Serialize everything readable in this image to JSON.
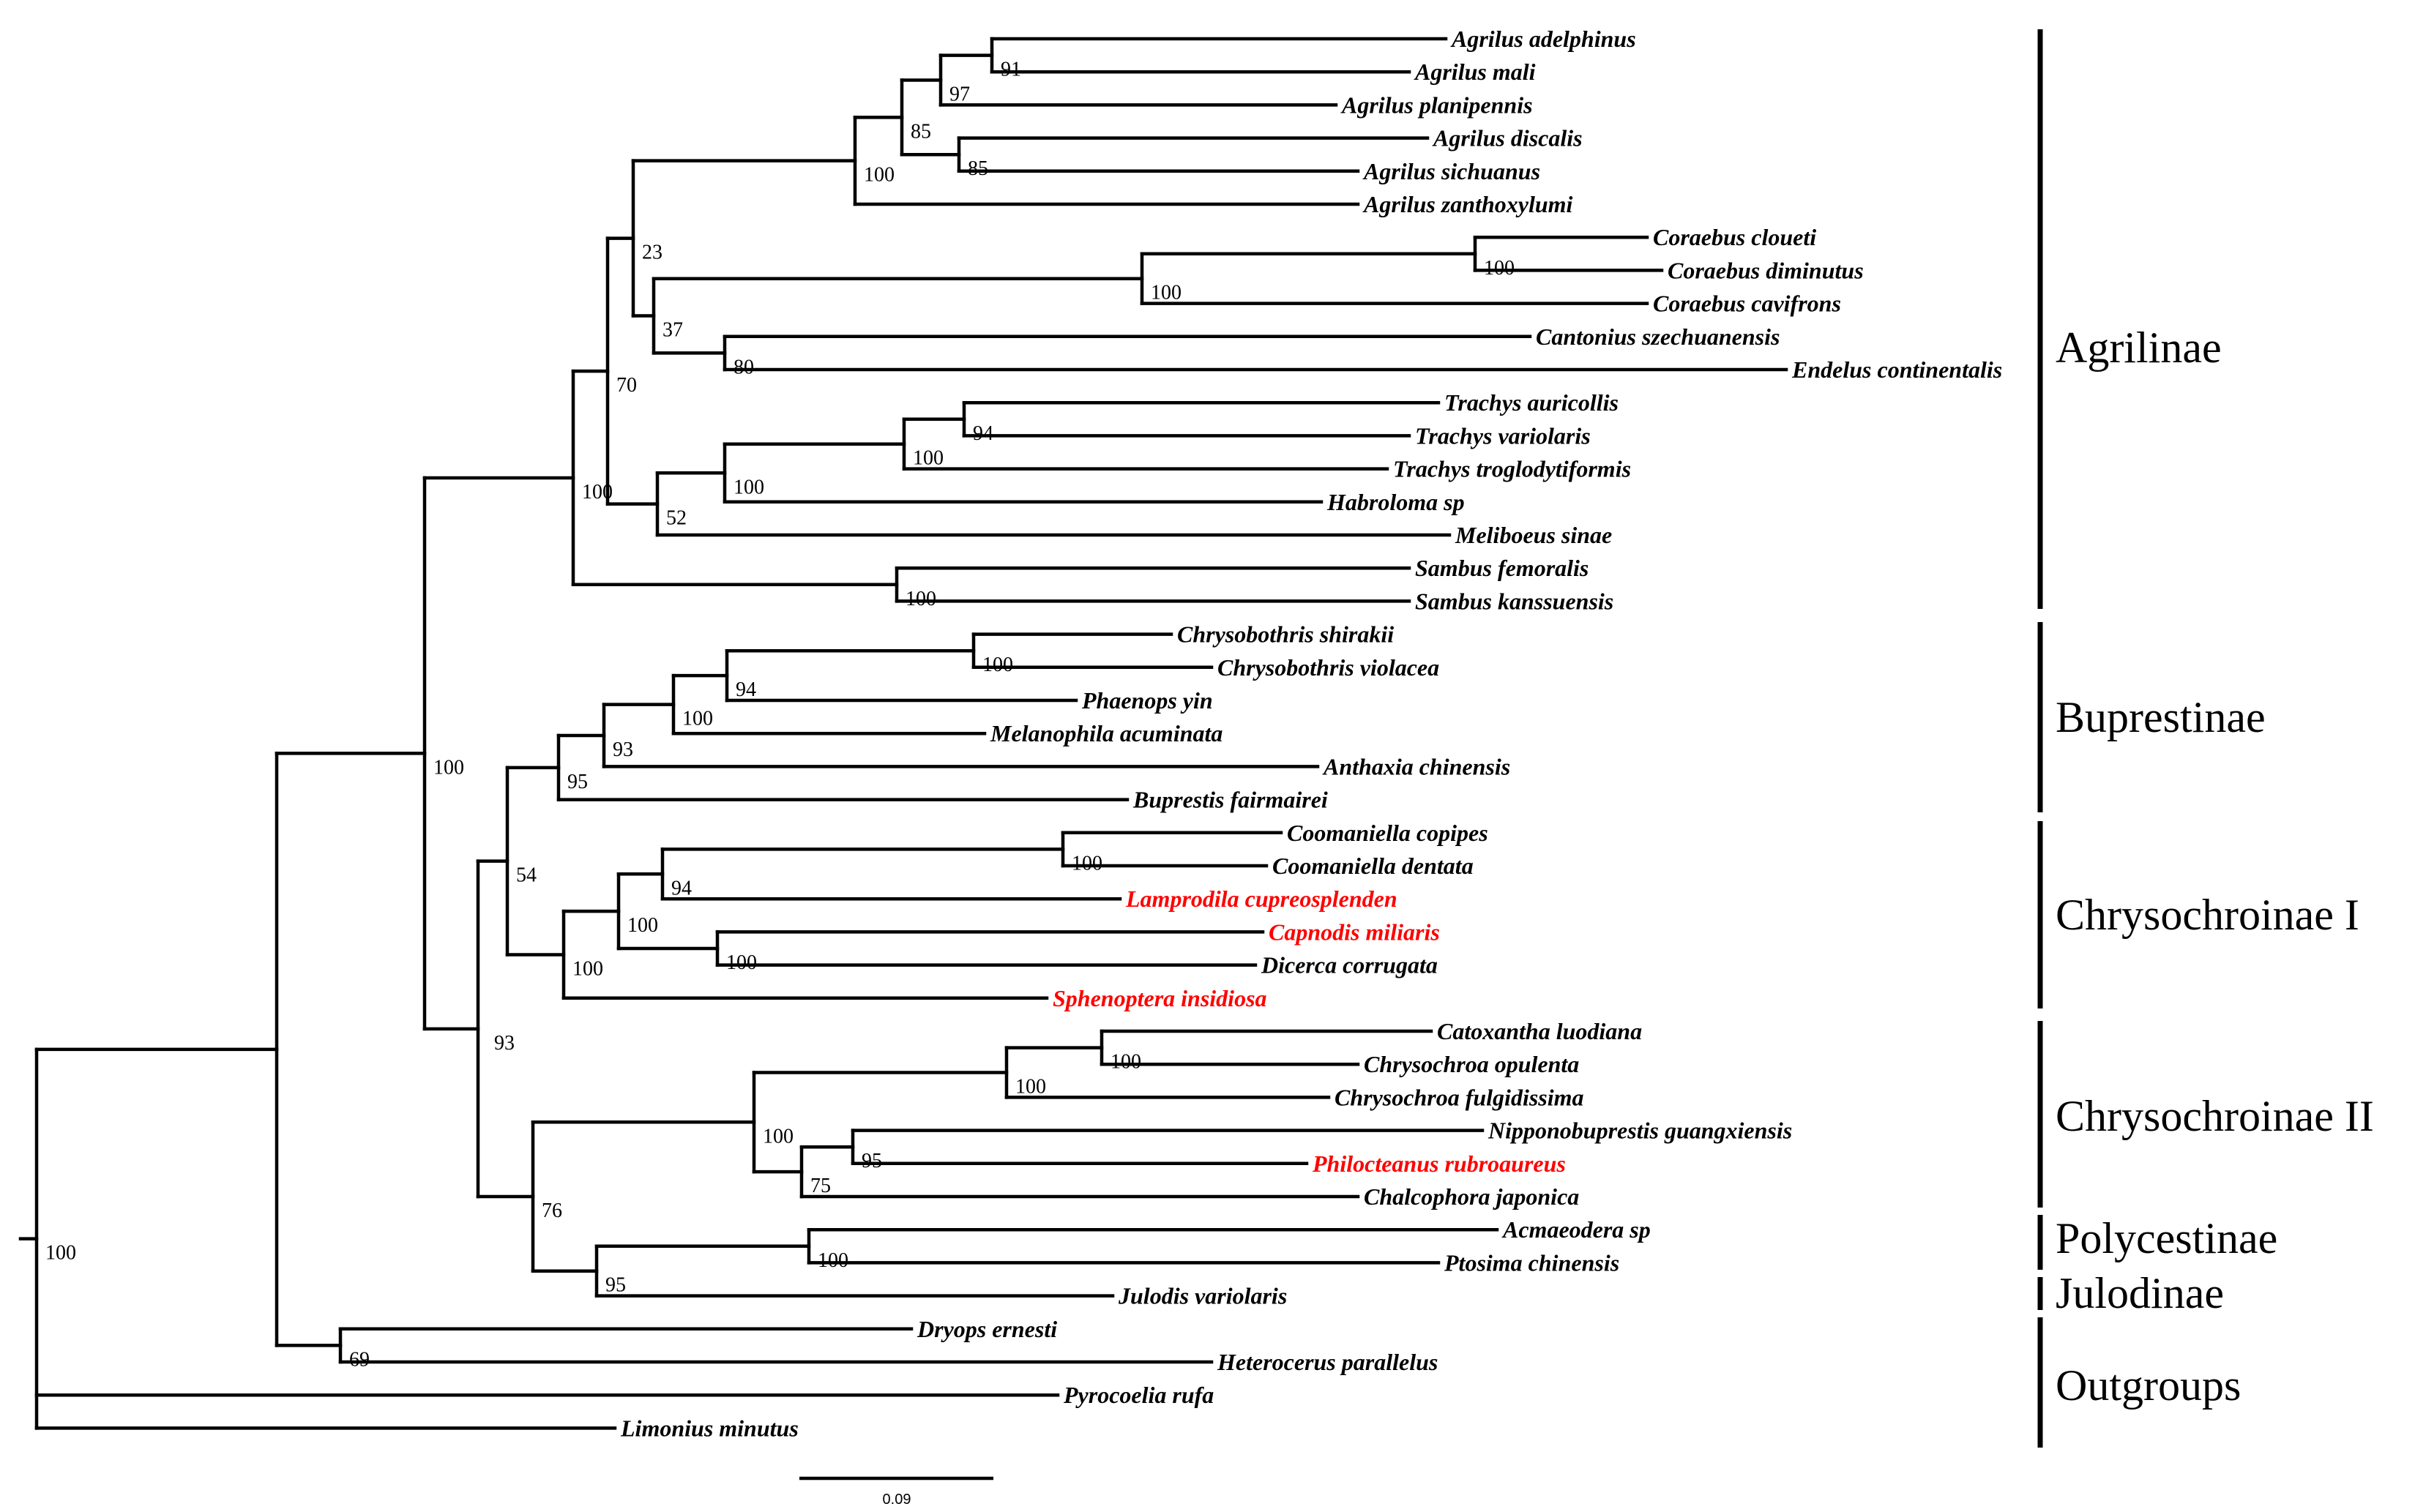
{
  "figure": {
    "type": "phylogenetic-tree",
    "highlight_color": "#ff0000",
    "line_color": "#000000",
    "scale_bar": {
      "label": "0.09"
    }
  },
  "taxa": [
    {
      "name": "Agrilus adelphinus",
      "highlight": false
    },
    {
      "name": "Agrilus mali",
      "highlight": false
    },
    {
      "name": "Agrilus planipennis",
      "highlight": false
    },
    {
      "name": "Agrilus discalis",
      "highlight": false
    },
    {
      "name": "Agrilus sichuanus",
      "highlight": false
    },
    {
      "name": "Agrilus zanthoxylumi",
      "highlight": false
    },
    {
      "name": "Coraebus cloueti",
      "highlight": false
    },
    {
      "name": "Coraebus diminutus",
      "highlight": false
    },
    {
      "name": "Coraebus cavifrons",
      "highlight": false
    },
    {
      "name": "Cantonius szechuanensis",
      "highlight": false
    },
    {
      "name": "Endelus continentalis",
      "highlight": false
    },
    {
      "name": "Trachys auricollis",
      "highlight": false
    },
    {
      "name": "Trachys variolaris",
      "highlight": false
    },
    {
      "name": "Trachys troglodytiformis",
      "highlight": false
    },
    {
      "name": "Habroloma sp",
      "highlight": false
    },
    {
      "name": "Meliboeus sinae",
      "highlight": false
    },
    {
      "name": "Sambus femoralis",
      "highlight": false
    },
    {
      "name": "Sambus kanssuensis",
      "highlight": false
    },
    {
      "name": "Chrysobothris shirakii",
      "highlight": false
    },
    {
      "name": "Chrysobothris violacea",
      "highlight": false
    },
    {
      "name": "Phaenops yin",
      "highlight": false
    },
    {
      "name": "Melanophila acuminata",
      "highlight": false
    },
    {
      "name": "Anthaxia chinensis",
      "highlight": false
    },
    {
      "name": "Buprestis fairmairei",
      "highlight": false
    },
    {
      "name": "Coomaniella copipes",
      "highlight": false
    },
    {
      "name": "Coomaniella dentata",
      "highlight": false
    },
    {
      "name": "Lamprodila cupreosplenden",
      "highlight": true
    },
    {
      "name": "Capnodis miliaris",
      "highlight": true
    },
    {
      "name": "Dicerca corrugata",
      "highlight": false
    },
    {
      "name": "Sphenoptera insidiosa",
      "highlight": true
    },
    {
      "name": "Catoxantha luodiana",
      "highlight": false
    },
    {
      "name": "Chrysochroa opulenta",
      "highlight": false
    },
    {
      "name": "Chrysochroa fulgidissima",
      "highlight": false
    },
    {
      "name": "Nipponobuprestis guangxiensis",
      "highlight": false
    },
    {
      "name": "Philocteanus rubroaureus",
      "highlight": true
    },
    {
      "name": "Chalcophora japonica",
      "highlight": false
    },
    {
      "name": "Acmaeodera sp",
      "highlight": false
    },
    {
      "name": "Ptosima chinensis",
      "highlight": false
    },
    {
      "name": "Julodis variolaris",
      "highlight": false
    },
    {
      "name": "Dryops ernesti",
      "highlight": false
    },
    {
      "name": "Heterocerus parallelus",
      "highlight": false
    },
    {
      "name": "Pyrocoelia rufa",
      "highlight": false
    },
    {
      "name": "Limonius minutus",
      "highlight": false
    }
  ],
  "support_values": [
    "91",
    "97",
    "85",
    "85",
    "100",
    "100",
    "100",
    "37",
    "80",
    "23",
    "94",
    "100",
    "100",
    "52",
    "70",
    "100",
    "100",
    "100",
    "94",
    "100",
    "93",
    "95",
    "100",
    "94",
    "100",
    "100",
    "100",
    "54",
    "100",
    "100",
    "95",
    "75",
    "100",
    "100",
    "95",
    "76",
    "93",
    "69",
    "100",
    "100"
  ],
  "clades": [
    {
      "label": "Agrilinae"
    },
    {
      "label": "Buprestinae"
    },
    {
      "label": "Chrysochroinae I"
    },
    {
      "label": "Chrysochroinae II"
    },
    {
      "label": "Polycestinae"
    },
    {
      "label": "Julodinae"
    },
    {
      "label": "Outgroups"
    }
  ]
}
